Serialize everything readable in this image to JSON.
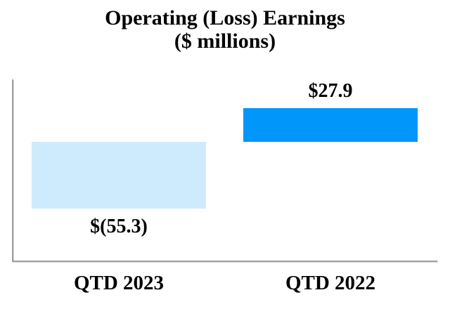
{
  "chart_data": {
    "type": "bar",
    "title": "Operating (Loss) Earnings",
    "subtitle": "($ millions)",
    "categories": [
      "QTD 2023",
      "QTD 2022"
    ],
    "values": [
      -55.3,
      27.9
    ],
    "data_labels": [
      "$(55.3)",
      "$27.9"
    ],
    "series": [
      {
        "name": "Operating (Loss) Earnings",
        "values": [
          -55.3,
          27.9
        ]
      }
    ],
    "bar_colors": [
      "#CDEBFC",
      "#0096FA"
    ],
    "axis_color": "#A0A0A0",
    "text_color": "#000000",
    "background_color": "#FFFFFF",
    "baseline": 0,
    "ylim": [
      -98,
      52
    ],
    "grid": false,
    "legend": "none",
    "y_axis_tick_labels": [],
    "data_label_positions": [
      "below-bar",
      "above-bar"
    ]
  }
}
